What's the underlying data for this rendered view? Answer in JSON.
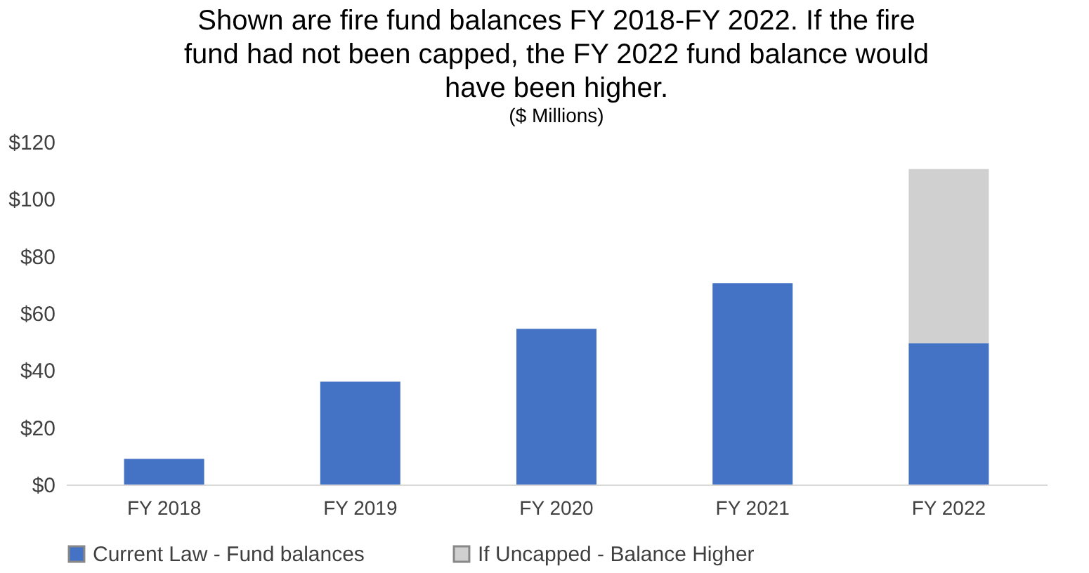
{
  "chart_data": {
    "type": "bar",
    "title": "Shown are fire fund balances FY 2018-FY 2022. If the fire fund had not been capped, the FY 2022 fund balance would have been higher.",
    "subtitle": "($ Millions)",
    "categories": [
      "FY 2018",
      "FY 2019",
      "FY 2020",
      "FY 2021",
      "FY 2022"
    ],
    "stacked": true,
    "series": [
      {
        "name": "Current Law - Fund balances",
        "color": "#4472c4",
        "values": [
          9,
          36,
          54.5,
          70.5,
          49.5
        ]
      },
      {
        "name": "If Uncapped -  Balance Higher",
        "color": "#d0d0d0",
        "values": [
          null,
          null,
          null,
          null,
          61
        ]
      }
    ],
    "ylim": [
      0,
      120
    ],
    "yticks": [
      {
        "value": 0,
        "label": "$0"
      },
      {
        "value": 20,
        "label": "$20"
      },
      {
        "value": 40,
        "label": "$40"
      },
      {
        "value": 60,
        "label": "$60"
      },
      {
        "value": 80,
        "label": "$80"
      },
      {
        "value": 100,
        "label": "$100"
      },
      {
        "value": 120,
        "label": "$120"
      }
    ],
    "grid": false,
    "legend": "bottom"
  }
}
